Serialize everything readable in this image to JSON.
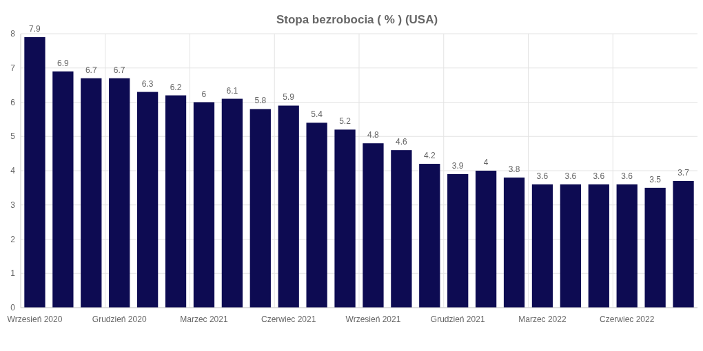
{
  "chart_data": {
    "type": "bar",
    "title": "Stopa bezrobocia ( % ) (USA)",
    "categories": [
      "Wrzesień 2020",
      null,
      null,
      "Grudzień 2020",
      null,
      null,
      "Marzec 2021",
      null,
      null,
      "Czerwiec 2021",
      null,
      null,
      "Wrzesień 2021",
      null,
      null,
      "Grudzień 2021",
      null,
      null,
      "Marzec 2022",
      null,
      null,
      "Czerwiec 2022",
      null,
      null
    ],
    "values": [
      7.9,
      6.9,
      6.7,
      6.7,
      6.3,
      6.2,
      6,
      6.1,
      5.8,
      5.9,
      5.4,
      5.2,
      4.8,
      4.6,
      4.2,
      3.9,
      4,
      3.8,
      3.6,
      3.6,
      3.6,
      3.6,
      3.5,
      3.7
    ],
    "color": "#0d0b52",
    "ylim": [
      0,
      8
    ],
    "yticks": [
      0,
      1,
      2,
      3,
      4,
      5,
      6,
      7,
      8
    ],
    "grid": true,
    "data_labels": true
  }
}
